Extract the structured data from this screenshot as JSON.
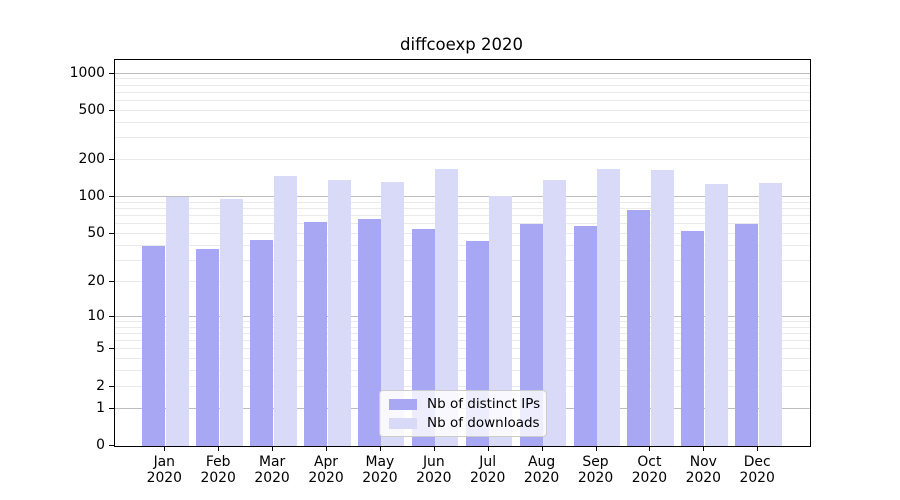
{
  "title": "diffcoexp 2020",
  "chart_data": {
    "type": "bar",
    "title": "diffcoexp 2020",
    "categories": [
      "Jan",
      "Feb",
      "Mar",
      "Apr",
      "May",
      "Jun",
      "Jul",
      "Aug",
      "Sep",
      "Oct",
      "Nov",
      "Dec"
    ],
    "category_year": "2020",
    "series": [
      {
        "name": "Nb of distinct IPs",
        "color": "#a7a7f3",
        "values": [
          40,
          38,
          45,
          63,
          66,
          55,
          44,
          61,
          58,
          78,
          53,
          61
        ]
      },
      {
        "name": "Nb of downloads",
        "color": "#d9d9f8",
        "values": [
          100,
          96,
          148,
          137,
          133,
          171,
          103,
          137,
          168,
          165,
          128,
          130
        ]
      }
    ],
    "xlabel": "",
    "ylabel": "",
    "yscale": "log1p",
    "yticks": [
      0,
      1,
      2,
      5,
      10,
      20,
      50,
      100,
      200,
      500,
      1000
    ],
    "major_grid_values": [
      1,
      10,
      100,
      1000
    ],
    "ylim": [
      0,
      1285
    ],
    "grid": "horizontal",
    "legend_position": "lower center",
    "colors": {
      "axis": "#000000",
      "major_grid": "#bdbdbd",
      "minor_grid": "#eaeaea",
      "background": "#ffffff"
    }
  }
}
